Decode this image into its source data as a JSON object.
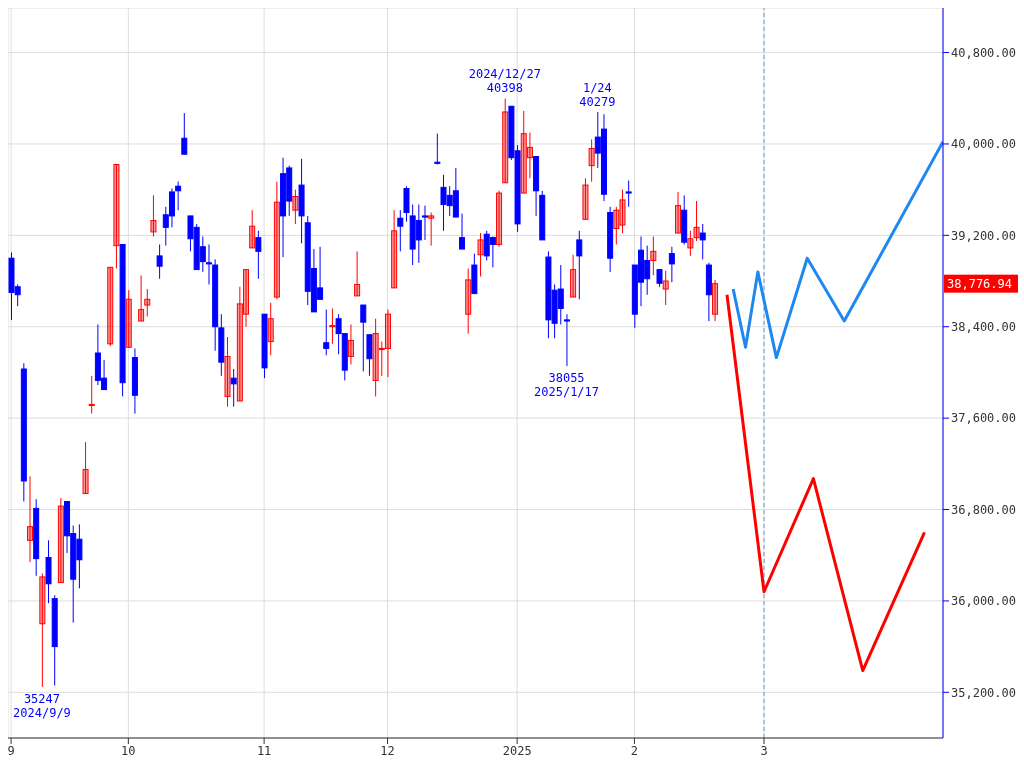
{
  "chart_data": {
    "type": "candlestick",
    "categories": [
      "9",
      null,
      null,
      null,
      null,
      null,
      null,
      null,
      null,
      null,
      null,
      null,
      null,
      null,
      null,
      null,
      null,
      null,
      null,
      "10",
      null,
      null,
      null,
      null,
      null,
      null,
      null,
      null,
      null,
      null,
      null,
      null,
      null,
      null,
      null,
      null,
      null,
      null,
      null,
      null,
      null,
      "11",
      null,
      null,
      null,
      null,
      null,
      null,
      null,
      null,
      null,
      null,
      null,
      null,
      null,
      null,
      null,
      null,
      null,
      null,
      null,
      "12",
      null,
      null,
      null,
      null,
      null,
      null,
      null,
      null,
      null,
      null,
      null,
      null,
      null,
      null,
      null,
      null,
      null,
      null,
      null,
      null,
      "2025",
      null,
      null,
      null,
      null,
      null,
      null,
      null,
      null,
      null,
      null,
      null,
      null,
      null,
      null,
      null,
      null,
      null,
      null,
      "2",
      null,
      null,
      null,
      null,
      null,
      null,
      null,
      null,
      null,
      null,
      null,
      null,
      null,
      null,
      null,
      null,
      null,
      null,
      null,
      null,
      "3",
      null,
      null,
      null,
      null,
      null,
      null,
      null,
      null,
      null,
      null,
      null,
      null,
      null,
      null,
      null,
      null,
      null,
      null,
      null,
      null,
      null,
      null,
      null,
      null,
      null,
      null,
      null,
      null,
      null
    ],
    "ohlc": [
      [
        39000,
        39050,
        38460,
        38700
      ],
      [
        38750,
        38770,
        38580,
        38680
      ],
      [
        38030,
        38080,
        36870,
        37050
      ],
      [
        36530,
        37090,
        36340,
        36650
      ],
      [
        36810,
        36890,
        36220,
        36370
      ],
      [
        35800,
        36240,
        35247,
        36210
      ],
      [
        36380,
        36530,
        35980,
        36150
      ],
      [
        36020,
        36050,
        35260,
        35600
      ],
      [
        36160,
        36900,
        36160,
        36830
      ],
      [
        36870,
        36870,
        36420,
        36570
      ],
      [
        36590,
        36660,
        35810,
        36190
      ],
      [
        36540,
        36670,
        36110,
        36360
      ],
      [
        36940,
        37390,
        36940,
        37150
      ],
      [
        37710,
        37970,
        37640,
        37720
      ],
      [
        38170,
        38420,
        37890,
        37930
      ],
      [
        37950,
        38110,
        37850,
        37850
      ],
      [
        38250,
        38920,
        38230,
        38920
      ],
      [
        39110,
        39820,
        38910,
        39820
      ],
      [
        39120,
        39120,
        37790,
        37910
      ],
      [
        38220,
        38720,
        38220,
        38640
      ],
      [
        38130,
        38210,
        37640,
        37800
      ],
      [
        38450,
        38850,
        38450,
        38550
      ],
      [
        38590,
        38730,
        38490,
        38640
      ],
      [
        39230,
        39550,
        39190,
        39330
      ],
      [
        39020,
        39120,
        38820,
        38930
      ],
      [
        39380,
        39450,
        39110,
        39270
      ],
      [
        39580,
        39610,
        39270,
        39370
      ],
      [
        39630,
        39670,
        39420,
        39590
      ],
      [
        40050,
        40270,
        39910,
        39910
      ],
      [
        39370,
        39370,
        39060,
        39170
      ],
      [
        39270,
        39300,
        38900,
        38900
      ],
      [
        39100,
        39190,
        38880,
        38970
      ],
      [
        38960,
        39120,
        38770,
        38950
      ],
      [
        38940,
        38990,
        38190,
        38400
      ],
      [
        38390,
        38510,
        37970,
        38090
      ],
      [
        37790,
        38310,
        37700,
        38140
      ],
      [
        37950,
        38030,
        37700,
        37900
      ],
      [
        37750,
        38750,
        37750,
        38600
      ],
      [
        38510,
        38900,
        38400,
        38900
      ],
      [
        39090,
        39420,
        39090,
        39280
      ],
      [
        39180,
        39240,
        38820,
        39060
      ],
      [
        38510,
        38510,
        37950,
        38040
      ],
      [
        38270,
        38610,
        38150,
        38470
      ],
      [
        38660,
        39670,
        38640,
        39490
      ],
      [
        39740,
        39880,
        39010,
        39370
      ],
      [
        39790,
        39810,
        39370,
        39500
      ],
      [
        39420,
        39600,
        39300,
        39540
      ],
      [
        39640,
        39870,
        39130,
        39370
      ],
      [
        39310,
        39370,
        38590,
        38710
      ],
      [
        38910,
        39080,
        38530,
        38530
      ],
      [
        38740,
        39100,
        38640,
        38640
      ],
      [
        38260,
        38550,
        38150,
        38210
      ],
      [
        38400,
        38560,
        38250,
        38410
      ],
      [
        38470,
        38510,
        38160,
        38340
      ],
      [
        38340,
        38340,
        37930,
        38020
      ],
      [
        38140,
        38420,
        38070,
        38280
      ],
      [
        38670,
        39060,
        38670,
        38770
      ],
      [
        38590,
        38590,
        38010,
        38440
      ],
      [
        38330,
        38330,
        37970,
        38120
      ],
      [
        37930,
        38470,
        37790,
        38340
      ],
      [
        38200,
        38270,
        37970,
        38210
      ],
      [
        38210,
        38550,
        37960,
        38510
      ],
      [
        38740,
        39420,
        38740,
        39240
      ],
      [
        39350,
        39420,
        39060,
        39280
      ],
      [
        39610,
        39630,
        39320,
        39400
      ],
      [
        39370,
        39470,
        38940,
        39080
      ],
      [
        39330,
        39470,
        38960,
        39160
      ],
      [
        39370,
        39460,
        39160,
        39360
      ],
      [
        39350,
        39400,
        39110,
        39370
      ],
      [
        39840,
        40090,
        39820,
        39830
      ],
      [
        39620,
        39730,
        39240,
        39470
      ],
      [
        39550,
        39630,
        39370,
        39460
      ],
      [
        39590,
        39790,
        39360,
        39360
      ],
      [
        39180,
        39390,
        39080,
        39080
      ],
      [
        38510,
        38910,
        38340,
        38810
      ],
      [
        38940,
        39040,
        38690,
        38690
      ],
      [
        39030,
        39220,
        38840,
        39160
      ],
      [
        39210,
        39240,
        38980,
        39020
      ],
      [
        39180,
        39190,
        38920,
        39120
      ],
      [
        39120,
        39590,
        39100,
        39570
      ],
      [
        39660,
        40398,
        39660,
        40280
      ],
      [
        40330,
        40330,
        39860,
        39880
      ],
      [
        39940,
        39990,
        39230,
        39300
      ],
      [
        39570,
        40290,
        39570,
        40090
      ],
      [
        39880,
        40100,
        39700,
        39970
      ],
      [
        39890,
        39890,
        39370,
        39590
      ],
      [
        39550,
        39590,
        39160,
        39160
      ],
      [
        39010,
        39060,
        38300,
        38460
      ],
      [
        38720,
        38770,
        38300,
        38430
      ],
      [
        38730,
        38940,
        38420,
        38560
      ],
      [
        38460,
        38510,
        38055,
        38450
      ],
      [
        38660,
        39030,
        38660,
        38900
      ],
      [
        39160,
        39240,
        38640,
        39020
      ],
      [
        39340,
        39700,
        39340,
        39640
      ],
      [
        39810,
        40040,
        39670,
        39960
      ],
      [
        40060,
        40279,
        39790,
        39920
      ],
      [
        40130,
        40260,
        39500,
        39560
      ],
      [
        39400,
        39450,
        38880,
        39000
      ],
      [
        39260,
        39450,
        39120,
        39420
      ],
      [
        39290,
        39600,
        39220,
        39510
      ],
      [
        39580,
        39680,
        39450,
        39570
      ],
      [
        38940,
        38940,
        38390,
        38510
      ],
      [
        39070,
        39190,
        38580,
        38790
      ],
      [
        38980,
        39110,
        38680,
        38820
      ],
      [
        38980,
        39190,
        38850,
        39060
      ],
      [
        38900,
        38900,
        38750,
        38780
      ],
      [
        38730,
        38890,
        38590,
        38800
      ],
      [
        39040,
        39100,
        38790,
        38950
      ],
      [
        39220,
        39580,
        39220,
        39460
      ],
      [
        39420,
        39550,
        39120,
        39140
      ],
      [
        39090,
        39240,
        39020,
        39170
      ],
      [
        39180,
        39500,
        39150,
        39270
      ],
      [
        39220,
        39300,
        38990,
        39160
      ],
      [
        38940,
        38960,
        38450,
        38680
      ],
      [
        38510,
        38810,
        38450,
        38776.94
      ],
      null,
      null,
      null,
      null,
      null,
      null,
      null,
      null,
      null,
      null,
      null,
      null,
      null,
      null,
      null,
      null,
      null,
      null,
      null,
      null,
      null,
      null,
      null,
      null,
      null,
      null,
      null,
      null,
      null,
      null,
      null,
      null,
      null,
      null,
      null,
      null,
      null
    ],
    "colors": [
      "#0000ff",
      "#0000ff",
      "#0000ff",
      "#ff0000",
      "#0000ff",
      "#ff0000",
      "#0000ff",
      "#0000ff",
      "#ff0000",
      "#0000ff",
      "#0000ff",
      "#0000ff",
      "#ff0000",
      "#ff0000",
      "#0000ff",
      "#0000ff",
      "#ff0000",
      "#ff0000",
      "#0000ff",
      "#ff0000",
      "#0000ff",
      "#ff0000",
      "#ff0000",
      "#ff0000",
      "#0000ff",
      "#0000ff",
      "#0000ff",
      "#0000ff",
      "#0000ff",
      "#0000ff",
      "#0000ff",
      "#0000ff",
      "#0000ff",
      "#0000ff",
      "#0000ff",
      "#ff0000",
      "#0000ff",
      "#ff0000",
      "#ff0000",
      "#ff0000",
      "#0000ff",
      "#0000ff",
      "#ff0000",
      "#ff0000",
      "#0000ff",
      "#0000ff",
      "#ff0000",
      "#0000ff",
      "#0000ff",
      "#0000ff",
      "#0000ff",
      "#0000ff",
      "#ff0000",
      "#0000ff",
      "#0000ff",
      "#ff0000",
      "#ff0000",
      "#0000ff",
      "#0000ff",
      "#ff0000",
      "#ff0000",
      "#ff0000",
      "#ff0000",
      "#0000ff",
      "#0000ff",
      "#0000ff",
      "#0000ff",
      "#0000ff",
      "#ff0000",
      "#0000ff",
      "#0000ff",
      "#0000ff",
      "#0000ff",
      "#0000ff",
      "#ff0000",
      "#0000ff",
      "#ff0000",
      "#0000ff",
      "#0000ff",
      "#ff0000",
      "#ff0000",
      "#0000ff",
      "#0000ff",
      "#ff0000",
      "#ff0000",
      "#0000ff",
      "#0000ff",
      "#0000ff",
      "#0000ff",
      "#0000ff",
      "#0000ff",
      "#ff0000",
      "#0000ff",
      "#ff0000",
      "#ff0000",
      "#0000ff",
      "#0000ff",
      "#0000ff",
      "#ff0000",
      "#ff0000",
      "#0000ff",
      "#0000ff",
      "#0000ff",
      "#0000ff",
      "#ff0000",
      "#0000ff",
      "#ff0000",
      "#0000ff",
      "#ff0000",
      "#0000ff",
      "#ff0000",
      "#ff0000",
      "#0000ff",
      "#0000ff",
      "#ff0000",
      null,
      null,
      null,
      null,
      null,
      null,
      null,
      null,
      null,
      null,
      null,
      null,
      null,
      null,
      null,
      null,
      null,
      null,
      null,
      null,
      null,
      null,
      null,
      null,
      null,
      null,
      null,
      null,
      null,
      null,
      null,
      null,
      null,
      null,
      null,
      null,
      null
    ],
    "series": [
      {
        "type": "line",
        "color": "#ff0000",
        "values": [
          null,
          null,
          null,
          null,
          null,
          null,
          null,
          null,
          null,
          null,
          null,
          null,
          null,
          null,
          null,
          null,
          null,
          null,
          null,
          null,
          null,
          null,
          null,
          null,
          null,
          null,
          null,
          null,
          null,
          null,
          null,
          null,
          null,
          null,
          null,
          null,
          null,
          null,
          null,
          null,
          null,
          null,
          null,
          null,
          null,
          null,
          null,
          null,
          null,
          null,
          null,
          null,
          null,
          null,
          null,
          null,
          null,
          null,
          null,
          null,
          null,
          null,
          null,
          null,
          null,
          null,
          null,
          null,
          null,
          null,
          null,
          null,
          null,
          null,
          null,
          null,
          null,
          null,
          null,
          null,
          null,
          null,
          null,
          null,
          null,
          null,
          null,
          null,
          null,
          null,
          null,
          null,
          null,
          null,
          null,
          null,
          null,
          null,
          null,
          null,
          null,
          null,
          null,
          null,
          null,
          null,
          null,
          null,
          null,
          null,
          null,
          null,
          null,
          null,
          null,
          null,
          38680,
          null,
          null,
          null,
          null,
          null,
          36080,
          null,
          null,
          null,
          null,
          null,
          null,
          null,
          37070,
          null,
          null,
          null,
          null,
          null,
          null,
          null,
          35390,
          null,
          null,
          null,
          null,
          null,
          null,
          null,
          null,
          null,
          36600,
          null,
          null,
          null
        ]
      },
      {
        "type": "line",
        "color": "#1e88f0",
        "values": [
          null,
          null,
          null,
          null,
          null,
          null,
          null,
          null,
          null,
          null,
          null,
          null,
          null,
          null,
          null,
          null,
          null,
          null,
          null,
          null,
          null,
          null,
          null,
          null,
          null,
          null,
          null,
          null,
          null,
          null,
          null,
          null,
          null,
          null,
          null,
          null,
          null,
          null,
          null,
          null,
          null,
          null,
          null,
          null,
          null,
          null,
          null,
          null,
          null,
          null,
          null,
          null,
          null,
          null,
          null,
          null,
          null,
          null,
          null,
          null,
          null,
          null,
          null,
          null,
          null,
          null,
          null,
          null,
          null,
          null,
          null,
          null,
          null,
          null,
          null,
          null,
          null,
          null,
          null,
          null,
          null,
          null,
          null,
          null,
          null,
          null,
          null,
          null,
          null,
          null,
          null,
          null,
          null,
          null,
          null,
          null,
          null,
          null,
          null,
          null,
          null,
          null,
          null,
          null,
          null,
          null,
          null,
          null,
          null,
          null,
          null,
          null,
          null,
          null,
          null,
          null,
          null,
          38730,
          null,
          38220,
          null,
          38880,
          null,
          null,
          38130,
          null,
          null,
          null,
          null,
          39000,
          null,
          null,
          null,
          null,
          null,
          38450,
          null,
          null,
          null,
          null,
          null,
          null,
          null,
          null,
          null,
          null,
          null,
          null,
          null,
          null,
          null,
          40020
        ]
      }
    ],
    "ylim": [
      34800,
      41190
    ],
    "yticks": [
      {
        "value": 35200,
        "label": "35,200.00"
      },
      {
        "value": 36000,
        "label": "36,000.00"
      },
      {
        "value": 36800,
        "label": "36,800.00"
      },
      {
        "value": 37600,
        "label": "37,600.00"
      },
      {
        "value": 38400,
        "label": "38,400.00"
      },
      {
        "value": 39200,
        "label": "39,200.00"
      },
      {
        "value": 40000,
        "label": "40,000.00"
      },
      {
        "value": 40800,
        "label": "40,800.00"
      }
    ],
    "grid": true,
    "ref_lines": [
      {
        "axis": "x",
        "value": "3",
        "color": "#6699cc",
        "line_style": "dashed"
      }
    ],
    "annotations": [
      {
        "text": "35247\n2024/9/9",
        "y": 35247
      },
      {
        "text": "2024/12/27\n40398",
        "y": 40398
      },
      {
        "text": "1/24\n40279",
        "y": 40279
      },
      {
        "text": "38055\n2025/1/17",
        "y": 38055
      },
      "38,776.94"
    ]
  }
}
